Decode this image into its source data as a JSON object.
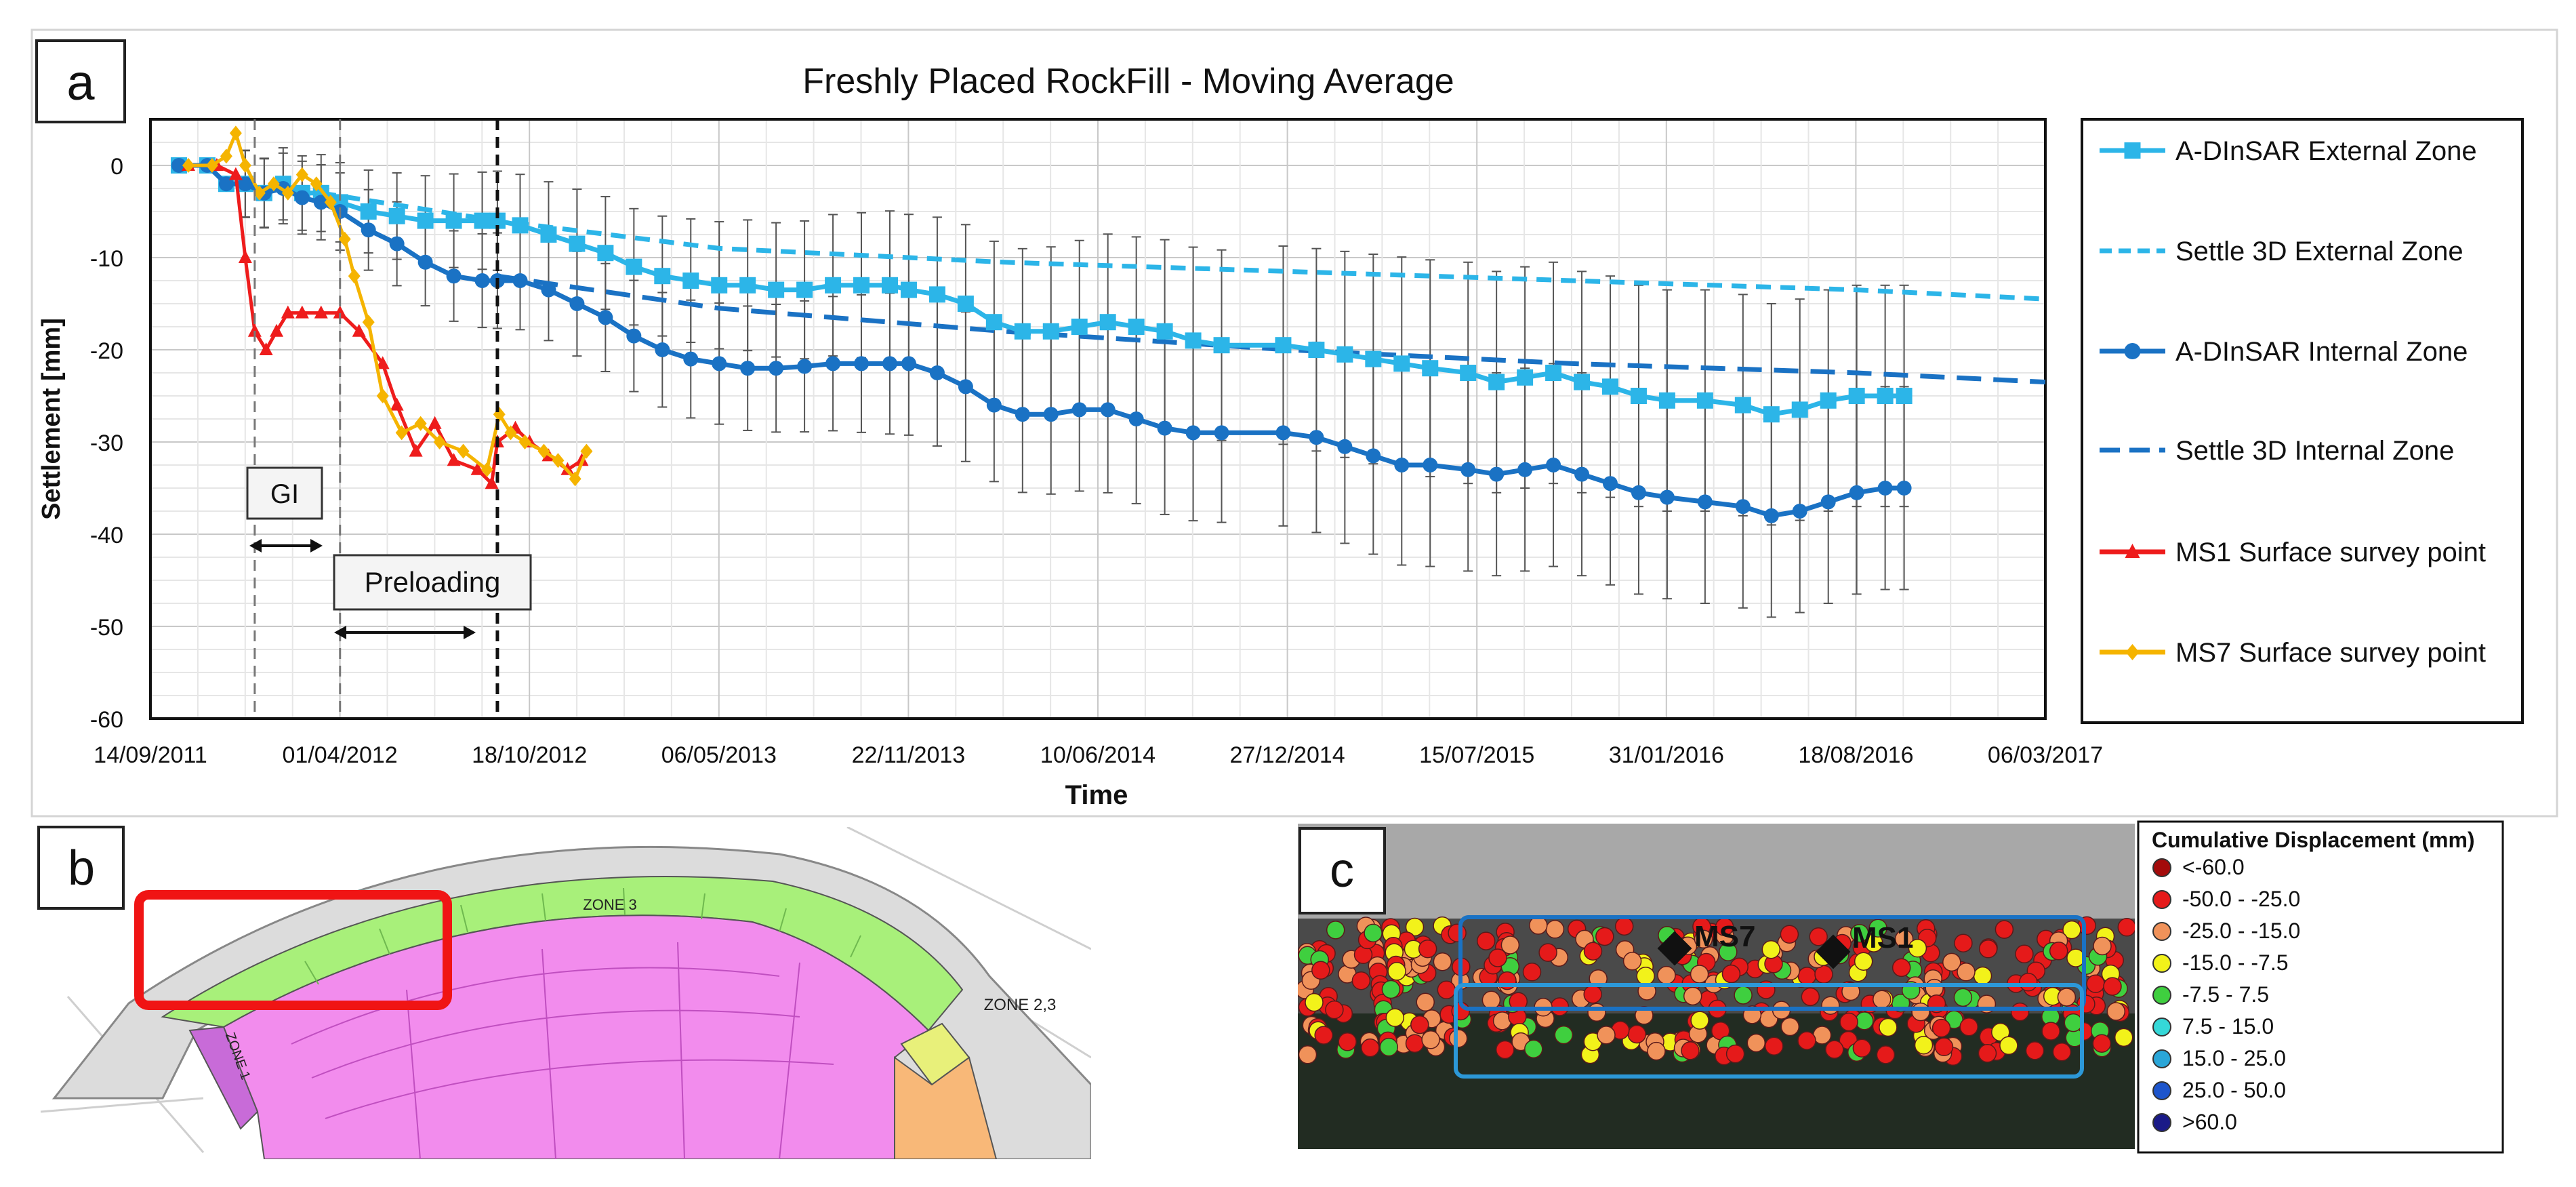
{
  "figure": {
    "panel_a_label": "a",
    "panel_b_label": "b",
    "panel_c_label": "c"
  },
  "chart_data": {
    "type": "line",
    "title": "Freshly Placed RockFill - Moving Average",
    "xlabel": "Time",
    "ylabel": "Settlement [mm]",
    "x_ticks": [
      "14/09/2011",
      "01/04/2012",
      "18/10/2012",
      "06/05/2013",
      "22/11/2013",
      "10/06/2014",
      "27/12/2014",
      "15/07/2015",
      "31/01/2016",
      "18/08/2016",
      "06/03/2017"
    ],
    "y_ticks": [
      "0",
      "-10",
      "-20",
      "-30",
      "-40",
      "-50",
      "-60"
    ],
    "ylim": [
      -60,
      5
    ],
    "xlim_days": [
      0,
      1999
    ],
    "grid": true,
    "legend_position": "right",
    "annotations": {
      "gi_label": "GI",
      "preloading_label": "Preloading",
      "vlines_days": [
        110,
        200,
        366
      ]
    },
    "series": [
      {
        "name": "A-DInSAR External Zone",
        "color": "#2cb5e8",
        "style": "solid-square",
        "points": [
          [
            30,
            0
          ],
          [
            60,
            0
          ],
          [
            80,
            -2
          ],
          [
            100,
            -2
          ],
          [
            120,
            -3
          ],
          [
            140,
            -2
          ],
          [
            160,
            -3
          ],
          [
            180,
            -3
          ],
          [
            200,
            -4
          ],
          [
            230,
            -5
          ],
          [
            260,
            -5.5
          ],
          [
            290,
            -6
          ],
          [
            320,
            -6
          ],
          [
            350,
            -6
          ],
          [
            366,
            -6
          ],
          [
            390,
            -6.5
          ],
          [
            420,
            -7.5
          ],
          [
            450,
            -8.5
          ],
          [
            480,
            -9.5
          ],
          [
            510,
            -11
          ],
          [
            540,
            -12
          ],
          [
            570,
            -12.5
          ],
          [
            600,
            -13
          ],
          [
            630,
            -13
          ],
          [
            660,
            -13.5
          ],
          [
            690,
            -13.5
          ],
          [
            720,
            -13
          ],
          [
            750,
            -13
          ],
          [
            780,
            -13
          ],
          [
            800,
            -13.5
          ],
          [
            830,
            -14
          ],
          [
            860,
            -15
          ],
          [
            890,
            -17
          ],
          [
            920,
            -18
          ],
          [
            950,
            -18
          ],
          [
            980,
            -17.5
          ],
          [
            1010,
            -17
          ],
          [
            1040,
            -17.5
          ],
          [
            1070,
            -18
          ],
          [
            1100,
            -19
          ],
          [
            1130,
            -19.5
          ],
          [
            1195,
            -19.5
          ],
          [
            1230,
            -20
          ],
          [
            1260,
            -20.5
          ],
          [
            1290,
            -21
          ],
          [
            1320,
            -21.5
          ],
          [
            1350,
            -22
          ],
          [
            1390,
            -22.5
          ],
          [
            1420,
            -23.5
          ],
          [
            1450,
            -23
          ],
          [
            1480,
            -22.5
          ],
          [
            1510,
            -23.5
          ],
          [
            1540,
            -24
          ],
          [
            1570,
            -25
          ],
          [
            1600,
            -25.5
          ],
          [
            1640,
            -25.5
          ],
          [
            1680,
            -26
          ],
          [
            1710,
            -27
          ],
          [
            1740,
            -26.5
          ],
          [
            1770,
            -25.5
          ],
          [
            1800,
            -25
          ],
          [
            1830,
            -25
          ],
          [
            1850,
            -25
          ]
        ]
      },
      {
        "name": "Settle 3D External Zone",
        "color": "#2cb5e8",
        "style": "dashed",
        "points": [
          [
            180,
            -3
          ],
          [
            366,
            -6
          ],
          [
            600,
            -9
          ],
          [
            900,
            -10.5
          ],
          [
            1200,
            -11.5
          ],
          [
            1500,
            -12.5
          ],
          [
            1800,
            -13.5
          ],
          [
            1999,
            -14.5
          ]
        ]
      },
      {
        "name": "A-DInSAR Internal Zone",
        "color": "#1a72c4",
        "style": "solid-circle",
        "points": [
          [
            30,
            0
          ],
          [
            60,
            0
          ],
          [
            80,
            -2
          ],
          [
            100,
            -2
          ],
          [
            120,
            -3
          ],
          [
            140,
            -2.5
          ],
          [
            160,
            -3.5
          ],
          [
            180,
            -4
          ],
          [
            200,
            -5
          ],
          [
            230,
            -7
          ],
          [
            260,
            -8.5
          ],
          [
            290,
            -10.5
          ],
          [
            320,
            -12
          ],
          [
            350,
            -12.5
          ],
          [
            366,
            -12.5
          ],
          [
            390,
            -12.5
          ],
          [
            420,
            -13.5
          ],
          [
            450,
            -15
          ],
          [
            480,
            -16.5
          ],
          [
            510,
            -18.5
          ],
          [
            540,
            -20
          ],
          [
            570,
            -21
          ],
          [
            600,
            -21.5
          ],
          [
            630,
            -22
          ],
          [
            660,
            -22
          ],
          [
            690,
            -21.8
          ],
          [
            720,
            -21.5
          ],
          [
            750,
            -21.5
          ],
          [
            780,
            -21.5
          ],
          [
            800,
            -21.5
          ],
          [
            830,
            -22.5
          ],
          [
            860,
            -24
          ],
          [
            890,
            -26
          ],
          [
            920,
            -27
          ],
          [
            950,
            -27
          ],
          [
            980,
            -26.5
          ],
          [
            1010,
            -26.5
          ],
          [
            1040,
            -27.5
          ],
          [
            1070,
            -28.5
          ],
          [
            1100,
            -29
          ],
          [
            1130,
            -29
          ],
          [
            1195,
            -29
          ],
          [
            1230,
            -29.5
          ],
          [
            1260,
            -30.5
          ],
          [
            1290,
            -31.5
          ],
          [
            1320,
            -32.5
          ],
          [
            1350,
            -32.5
          ],
          [
            1390,
            -33
          ],
          [
            1420,
            -33.5
          ],
          [
            1450,
            -33
          ],
          [
            1480,
            -32.5
          ],
          [
            1510,
            -33.5
          ],
          [
            1540,
            -34.5
          ],
          [
            1570,
            -35.5
          ],
          [
            1600,
            -36
          ],
          [
            1640,
            -36.5
          ],
          [
            1680,
            -37
          ],
          [
            1710,
            -38
          ],
          [
            1740,
            -37.5
          ],
          [
            1770,
            -36.5
          ],
          [
            1800,
            -35.5
          ],
          [
            1830,
            -35
          ],
          [
            1850,
            -35
          ]
        ]
      },
      {
        "name": "Settle 3D Internal Zone",
        "color": "#1a72c4",
        "style": "dashed",
        "points": [
          [
            366,
            -12
          ],
          [
            600,
            -15.5
          ],
          [
            900,
            -18
          ],
          [
            1200,
            -20
          ],
          [
            1500,
            -21.5
          ],
          [
            1800,
            -22.5
          ],
          [
            1999,
            -23.5
          ]
        ]
      },
      {
        "name": "MS1 Surface survey point",
        "color": "#ee1c1c",
        "style": "solid-triangle",
        "points": [
          [
            40,
            0
          ],
          [
            70,
            0
          ],
          [
            90,
            -1
          ],
          [
            100,
            -10
          ],
          [
            110,
            -18
          ],
          [
            122,
            -20
          ],
          [
            133,
            -18
          ],
          [
            145,
            -16
          ],
          [
            160,
            -16
          ],
          [
            180,
            -16
          ],
          [
            200,
            -16
          ],
          [
            220,
            -18
          ],
          [
            245,
            -21.5
          ],
          [
            260,
            -26
          ],
          [
            280,
            -31
          ],
          [
            300,
            -28
          ],
          [
            320,
            -32
          ],
          [
            345,
            -33
          ],
          [
            360,
            -34.5
          ],
          [
            366,
            -30
          ],
          [
            385,
            -28.5
          ],
          [
            400,
            -30
          ],
          [
            420,
            -31.5
          ],
          [
            440,
            -33
          ],
          [
            455,
            -32
          ]
        ]
      },
      {
        "name": "MS7 Surface survey point",
        "color": "#f5b400",
        "style": "solid-diamond",
        "points": [
          [
            40,
            0
          ],
          [
            65,
            0
          ],
          [
            80,
            1
          ],
          [
            90,
            3.5
          ],
          [
            100,
            0
          ],
          [
            115,
            -3
          ],
          [
            130,
            -2
          ],
          [
            145,
            -3
          ],
          [
            160,
            -1
          ],
          [
            175,
            -2
          ],
          [
            190,
            -4
          ],
          [
            205,
            -8
          ],
          [
            215,
            -12
          ],
          [
            230,
            -17
          ],
          [
            245,
            -25
          ],
          [
            265,
            -29
          ],
          [
            285,
            -28
          ],
          [
            305,
            -30
          ],
          [
            330,
            -31
          ],
          [
            355,
            -33
          ],
          [
            368,
            -27
          ],
          [
            380,
            -29
          ],
          [
            395,
            -30
          ],
          [
            415,
            -31
          ],
          [
            430,
            -32
          ],
          [
            448,
            -34
          ],
          [
            460,
            -31
          ]
        ]
      }
    ]
  },
  "panel_b": {
    "zone_3_label": "ZONE 3",
    "zone_23_label": "ZONE 2,3",
    "zone_side_label": "ZONE 1"
  },
  "panel_c": {
    "legend_title": "Cumulative Displacement (mm)",
    "legend_items": [
      {
        "label": "<-60.0",
        "color": "#a40b0b"
      },
      {
        "label": "-50.0 - -25.0",
        "color": "#e51a1a"
      },
      {
        "label": "-25.0 - -15.0",
        "color": "#f0925a"
      },
      {
        "label": "-15.0 - -7.5",
        "color": "#f2f21a"
      },
      {
        "label": "-7.5 - 7.5",
        "color": "#3fcf3f"
      },
      {
        "label": "7.5 - 15.0",
        "color": "#35d8d8"
      },
      {
        "label": "15.0 - 25.0",
        "color": "#2aa6d8"
      },
      {
        "label": "25.0 - 50.0",
        "color": "#1d55cc"
      },
      {
        "label": ">60.0",
        "color": "#1a1a88"
      }
    ],
    "marker_ms7": "MS7",
    "marker_ms1": "MS1"
  }
}
